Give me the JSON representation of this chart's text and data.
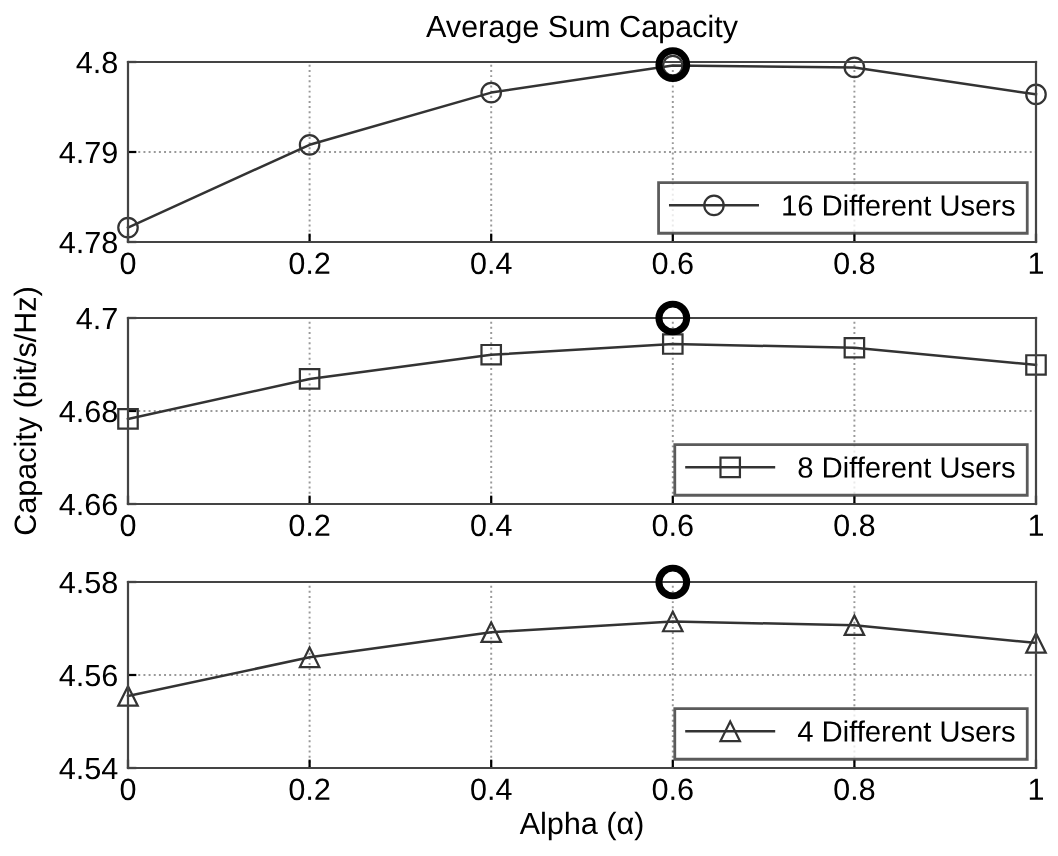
{
  "chart_data": [
    {
      "type": "line",
      "title": "Average Sum Capacity",
      "x": [
        0,
        0.2,
        0.4,
        0.6,
        0.8,
        1
      ],
      "xlim": [
        0,
        1
      ],
      "xticks": [
        0,
        0.2,
        0.4,
        0.6,
        0.8,
        1
      ],
      "ylim": [
        4.78,
        4.8
      ],
      "yticks": [
        4.78,
        4.79,
        4.8
      ],
      "grid": true,
      "legend": "bottom right",
      "series": [
        {
          "name": "16 Different Users",
          "color": "#333333",
          "marker": "circle",
          "values": [
            4.7816,
            4.7908,
            4.7966,
            4.7996,
            4.7994,
            4.7964
          ]
        },
        {
          "type": "scatter",
          "color": "#000000",
          "marker": "circle",
          "values": [
            null,
            null,
            null,
            4.7997,
            null,
            null
          ]
        }
      ]
    },
    {
      "type": "line",
      "ylabel": "Capacity (bit/s/Hz)",
      "x": [
        0,
        0.2,
        0.4,
        0.6,
        0.8,
        1
      ],
      "xlim": [
        0,
        1
      ],
      "xticks": [
        0,
        0.2,
        0.4,
        0.6,
        0.8,
        1
      ],
      "ylim": [
        4.66,
        4.7
      ],
      "yticks": [
        4.66,
        4.68,
        4.7
      ],
      "grid": true,
      "legend": "bottom right",
      "series": [
        {
          "name": "8 Different Users",
          "color": "#333333",
          "marker": "square",
          "values": [
            4.6783,
            4.6869,
            4.6921,
            4.6944,
            4.6936,
            4.6899
          ]
        },
        {
          "type": "scatter",
          "color": "#000000",
          "marker": "circle",
          "values": [
            null,
            null,
            null,
            4.7,
            null,
            null
          ]
        }
      ]
    },
    {
      "type": "line",
      "xlabel": "Alpha (α)",
      "x": [
        0,
        0.2,
        0.4,
        0.6,
        0.8,
        1
      ],
      "xlim": [
        0,
        1
      ],
      "xticks": [
        0,
        0.2,
        0.4,
        0.6,
        0.8,
        1
      ],
      "ylim": [
        4.54,
        4.58
      ],
      "yticks": [
        4.54,
        4.56,
        4.58
      ],
      "grid": true,
      "legend": "bottom right",
      "series": [
        {
          "name": "4 Different Users",
          "color": "#333333",
          "marker": "triangle",
          "values": [
            4.5555,
            4.5638,
            4.5692,
            4.5715,
            4.5707,
            4.5669
          ]
        },
        {
          "type": "scatter",
          "color": "#000000",
          "marker": "circle",
          "values": [
            null,
            null,
            null,
            4.58,
            null,
            null
          ]
        }
      ]
    }
  ]
}
